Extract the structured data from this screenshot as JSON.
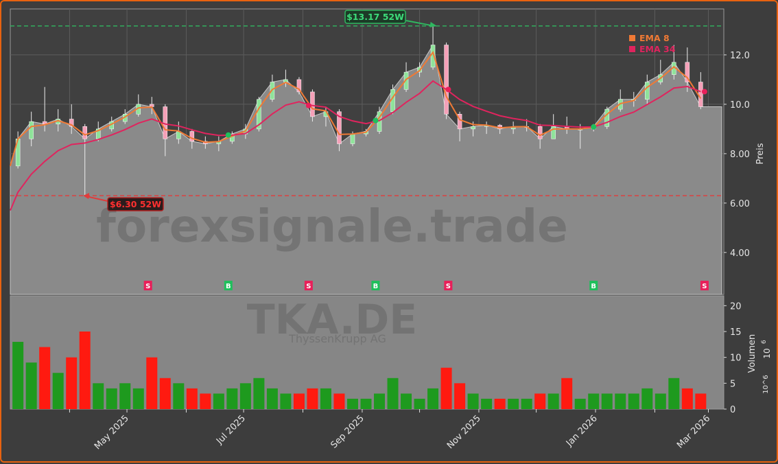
{
  "chart_data": [
    {
      "type": "candlestick",
      "panel": "price",
      "ylabel": "Preis",
      "ylim": [
        2.3,
        13.86
      ],
      "yticks": [
        "4.00",
        "6.00",
        "8.00",
        "10.0",
        "12.0"
      ],
      "ytick_values": [
        4,
        6,
        8,
        10,
        12
      ],
      "grid": true,
      "xticks": [
        "May 2025",
        "Jul 2025",
        "Sep 2025",
        "Nov 2025",
        "Jan 2026",
        "Mar 2026"
      ],
      "xtick_dates": [
        "2025-05-01",
        "2025-07-01",
        "2025-09-01",
        "2025-11-01",
        "2026-01-01",
        "2026-03-01"
      ],
      "xminor_dates": [
        "2025-04-01",
        "2025-06-01",
        "2025-08-01",
        "2025-10-01",
        "2025-12-01",
        "2026-02-01"
      ],
      "x_range": [
        "2025-03-01",
        "2026-03-08"
      ],
      "columns": [
        "date",
        "open",
        "high",
        "low",
        "close"
      ],
      "ohlc": [
        [
          "2025-03-03",
          7.5,
          8.9,
          7.4,
          8.6
        ],
        [
          "2025-03-10",
          8.6,
          9.7,
          8.3,
          9.3
        ],
        [
          "2025-03-17",
          9.3,
          10.7,
          8.9,
          9.2
        ],
        [
          "2025-03-24",
          9.2,
          9.8,
          8.9,
          9.4
        ],
        [
          "2025-03-31",
          9.4,
          10.0,
          8.8,
          9.1
        ],
        [
          "2025-04-07",
          9.1,
          9.2,
          6.3,
          8.6
        ],
        [
          "2025-04-14",
          8.6,
          9.3,
          8.5,
          9.0
        ],
        [
          "2025-04-21",
          9.0,
          9.5,
          8.9,
          9.3
        ],
        [
          "2025-04-28",
          9.3,
          9.8,
          9.2,
          9.6
        ],
        [
          "2025-05-05",
          9.6,
          10.4,
          9.5,
          10.0
        ],
        [
          "2025-05-12",
          10.0,
          10.3,
          9.6,
          9.9
        ],
        [
          "2025-05-19",
          9.9,
          10.0,
          7.9,
          8.6
        ],
        [
          "2025-05-26",
          8.6,
          9.3,
          8.4,
          8.9
        ],
        [
          "2025-06-02",
          8.9,
          9.0,
          8.2,
          8.5
        ],
        [
          "2025-06-09",
          8.5,
          8.7,
          8.2,
          8.4
        ],
        [
          "2025-06-16",
          8.4,
          8.7,
          8.1,
          8.5
        ],
        [
          "2025-06-23",
          8.5,
          8.9,
          8.4,
          8.8
        ],
        [
          "2025-06-30",
          8.8,
          9.2,
          8.6,
          9.0
        ],
        [
          "2025-07-07",
          9.0,
          10.3,
          8.9,
          10.2
        ],
        [
          "2025-07-14",
          10.2,
          11.2,
          10.1,
          10.9
        ],
        [
          "2025-07-21",
          10.9,
          11.4,
          10.7,
          11.0
        ],
        [
          "2025-07-28",
          11.0,
          11.1,
          10.4,
          10.5
        ],
        [
          "2025-08-04",
          10.5,
          10.6,
          9.3,
          9.5
        ],
        [
          "2025-08-11",
          9.5,
          9.9,
          9.1,
          9.7
        ],
        [
          "2025-08-18",
          9.7,
          9.8,
          8.1,
          8.4
        ],
        [
          "2025-08-25",
          8.4,
          8.9,
          8.3,
          8.8
        ],
        [
          "2025-09-01",
          8.8,
          9.0,
          8.7,
          8.9
        ],
        [
          "2025-09-08",
          8.9,
          9.9,
          8.8,
          9.7
        ],
        [
          "2025-09-15",
          9.7,
          10.8,
          9.6,
          10.6
        ],
        [
          "2025-09-22",
          10.6,
          11.7,
          10.5,
          11.3
        ],
        [
          "2025-09-29",
          11.3,
          11.7,
          11.1,
          11.5
        ],
        [
          "2025-10-06",
          11.5,
          13.17,
          11.4,
          12.4
        ],
        [
          "2025-10-13",
          12.4,
          12.5,
          9.4,
          9.6
        ],
        [
          "2025-10-20",
          9.6,
          9.7,
          8.5,
          9.0
        ],
        [
          "2025-10-27",
          9.0,
          9.3,
          8.7,
          9.1
        ],
        [
          "2025-11-03",
          9.1,
          9.3,
          8.8,
          9.15
        ],
        [
          "2025-11-10",
          9.15,
          9.2,
          8.8,
          9.0
        ],
        [
          "2025-11-17",
          9.0,
          9.3,
          8.8,
          9.1
        ],
        [
          "2025-11-24",
          9.1,
          9.4,
          8.9,
          9.1
        ],
        [
          "2025-12-01",
          9.1,
          9.2,
          8.2,
          8.6
        ],
        [
          "2025-12-08",
          8.6,
          9.6,
          8.6,
          9.1
        ],
        [
          "2025-12-15",
          9.1,
          9.5,
          8.8,
          9.0
        ],
        [
          "2025-12-22",
          9.0,
          9.2,
          8.2,
          9.0
        ],
        [
          "2025-12-29",
          9.0,
          9.2,
          8.9,
          9.1
        ],
        [
          "2026-01-05",
          9.1,
          9.9,
          9.0,
          9.8
        ],
        [
          "2026-01-12",
          9.8,
          10.6,
          9.7,
          10.2
        ],
        [
          "2026-01-19",
          10.2,
          10.5,
          9.9,
          10.2
        ],
        [
          "2026-01-26",
          10.2,
          11.2,
          10.0,
          10.9
        ],
        [
          "2026-02-02",
          10.9,
          11.8,
          10.8,
          11.2
        ],
        [
          "2026-02-09",
          11.2,
          12.4,
          11.0,
          11.7
        ],
        [
          "2026-02-16",
          11.7,
          12.3,
          10.5,
          10.9
        ],
        [
          "2026-02-23",
          10.9,
          11.3,
          9.8,
          9.9
        ]
      ],
      "indicators": [
        {
          "name": "EMA 8",
          "period": 8,
          "color": "#f07a35"
        },
        {
          "name": "EMA 34",
          "period": 34,
          "color": "#e0245e"
        }
      ],
      "reference_lines": [
        {
          "label": "$13.17 52W",
          "value": 13.17,
          "date": "2025-10-10",
          "color": "#2fb860"
        },
        {
          "label": "$6.30 52W",
          "value": 6.3,
          "date": "2025-04-07",
          "color": "#e23b3b"
        }
      ],
      "signals": [
        {
          "label": "S",
          "date": "2025-05-12"
        },
        {
          "label": "B",
          "date": "2025-06-23"
        },
        {
          "label": "S",
          "date": "2025-08-04"
        },
        {
          "label": "B",
          "date": "2025-09-08"
        },
        {
          "label": "S",
          "date": "2025-10-16"
        },
        {
          "label": "B",
          "date": "2025-12-31"
        },
        {
          "label": "S",
          "date": "2026-02-27"
        }
      ],
      "colors": {
        "up": "#8fe39a",
        "down": "#f5a0b8",
        "area": "#8a8a8a",
        "buy": "#1fbf5c",
        "sell": "#e8205a"
      }
    },
    {
      "type": "bar",
      "panel": "volume",
      "ylabel": "Volumen",
      "yunit": "10^6",
      "ylim": [
        0,
        21.9
      ],
      "yticks": [
        "0",
        "5",
        "10",
        "15",
        "20"
      ],
      "ytick_values": [
        0,
        5,
        10,
        15,
        20
      ],
      "values": [
        13,
        9,
        12,
        7,
        10,
        15,
        5,
        4,
        5,
        4,
        10,
        6,
        5,
        4,
        3,
        3,
        4,
        5,
        6,
        4,
        3,
        3,
        4,
        4,
        3,
        2,
        2,
        3,
        6,
        3,
        2,
        4,
        8,
        5,
        3,
        2,
        2,
        2,
        2,
        3,
        3,
        6,
        2,
        3,
        3,
        3,
        3,
        4,
        3,
        6,
        4,
        3
      ],
      "colors": {
        "up": "#1e9a1e",
        "down": "#ff1a10"
      }
    }
  ],
  "watermark": {
    "site": "forexsignale.trade",
    "ticker": "TKA.DE",
    "company": "ThyssenKrupp AG"
  },
  "unit_exponent": "6",
  "unit_base": "10"
}
